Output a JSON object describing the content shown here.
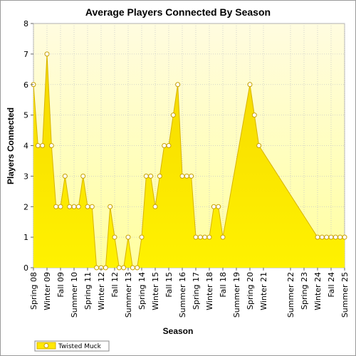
{
  "chart_data": {
    "type": "area",
    "title": "Average Players Connected By Season",
    "xlabel": "Season",
    "ylabel": "Players Connected",
    "ylim": [
      0,
      8
    ],
    "yticks": [
      0,
      1,
      2,
      3,
      4,
      5,
      6,
      7,
      8
    ],
    "grid": true,
    "legend_position": "bottom-left",
    "x_tick_labels": [
      "Spring 08",
      "Winter 09",
      "Fall 09",
      "Summer 10",
      "Spring 11",
      "Winter 12",
      "Fall 12",
      "Summer 13",
      "Spring 14",
      "Winter 15",
      "Fall 15",
      "Summer 16",
      "Spring 17",
      "Winter 18",
      "Fall 18",
      "Summer 19",
      "Spring 20",
      "Winter 21",
      "Summer 22",
      "Spring 23",
      "Winter 24",
      "Fall 24",
      "Summer 25"
    ],
    "colors": {
      "fill": "#ffe800",
      "line": "#d8b400",
      "marker_fill": "#ffffff",
      "marker_stroke": "#c8a000",
      "plot_bg_top": "#fffce0",
      "plot_bg_bottom": "#ffffa0"
    },
    "series": [
      {
        "name": "Twisted Muck",
        "points": [
          {
            "x": "Spring 08",
            "y": 6
          },
          {
            "x": "Summer 08",
            "y": 4
          },
          {
            "x": "Fall 08",
            "y": 4
          },
          {
            "x": "Winter 09",
            "y": 7
          },
          {
            "x": "Spring 09",
            "y": 4
          },
          {
            "x": "Summer 09",
            "y": 2
          },
          {
            "x": "Fall 09",
            "y": 2
          },
          {
            "x": "Winter 10",
            "y": 3
          },
          {
            "x": "Spring 10",
            "y": 2
          },
          {
            "x": "Summer 10",
            "y": 2
          },
          {
            "x": "Fall 10",
            "y": 2
          },
          {
            "x": "Winter 11",
            "y": 3
          },
          {
            "x": "Spring 11",
            "y": 2
          },
          {
            "x": "Summer 11",
            "y": 2
          },
          {
            "x": "Fall 11",
            "y": 0
          },
          {
            "x": "Winter 12",
            "y": 0
          },
          {
            "x": "Spring 12",
            "y": 0
          },
          {
            "x": "Summer 12",
            "y": 2
          },
          {
            "x": "Fall 12",
            "y": 1
          },
          {
            "x": "Winter 13",
            "y": 0
          },
          {
            "x": "Spring 13",
            "y": 0
          },
          {
            "x": "Summer 13",
            "y": 1
          },
          {
            "x": "Fall 13",
            "y": 0
          },
          {
            "x": "Winter 14",
            "y": 0
          },
          {
            "x": "Spring 14",
            "y": 1
          },
          {
            "x": "Summer 14",
            "y": 3
          },
          {
            "x": "Fall 14",
            "y": 3
          },
          {
            "x": "Winter 15",
            "y": 2
          },
          {
            "x": "Spring 15",
            "y": 3
          },
          {
            "x": "Summer 15",
            "y": 4
          },
          {
            "x": "Fall 15",
            "y": 4
          },
          {
            "x": "Winter 16",
            "y": 5
          },
          {
            "x": "Spring 16",
            "y": 6
          },
          {
            "x": "Summer 16",
            "y": 3
          },
          {
            "x": "Fall 16",
            "y": 3
          },
          {
            "x": "Winter 17",
            "y": 3
          },
          {
            "x": "Spring 17",
            "y": 1
          },
          {
            "x": "Summer 17",
            "y": 1
          },
          {
            "x": "Fall 17",
            "y": 1
          },
          {
            "x": "Winter 18",
            "y": 1
          },
          {
            "x": "Spring 18",
            "y": 2
          },
          {
            "x": "Summer 18",
            "y": 2
          },
          {
            "x": "Fall 18",
            "y": 1
          },
          {
            "x": "Spring 20",
            "y": 6
          },
          {
            "x": "Summer 20",
            "y": 5
          },
          {
            "x": "Fall 20",
            "y": 4
          },
          {
            "x": "Winter 24",
            "y": 1
          },
          {
            "x": "Spring 24",
            "y": 1
          },
          {
            "x": "Summer 24",
            "y": 1
          },
          {
            "x": "Fall 24",
            "y": 1
          },
          {
            "x": "Winter 25",
            "y": 1
          },
          {
            "x": "Spring 25",
            "y": 1
          },
          {
            "x": "Summer 25",
            "y": 1
          }
        ]
      }
    ]
  }
}
